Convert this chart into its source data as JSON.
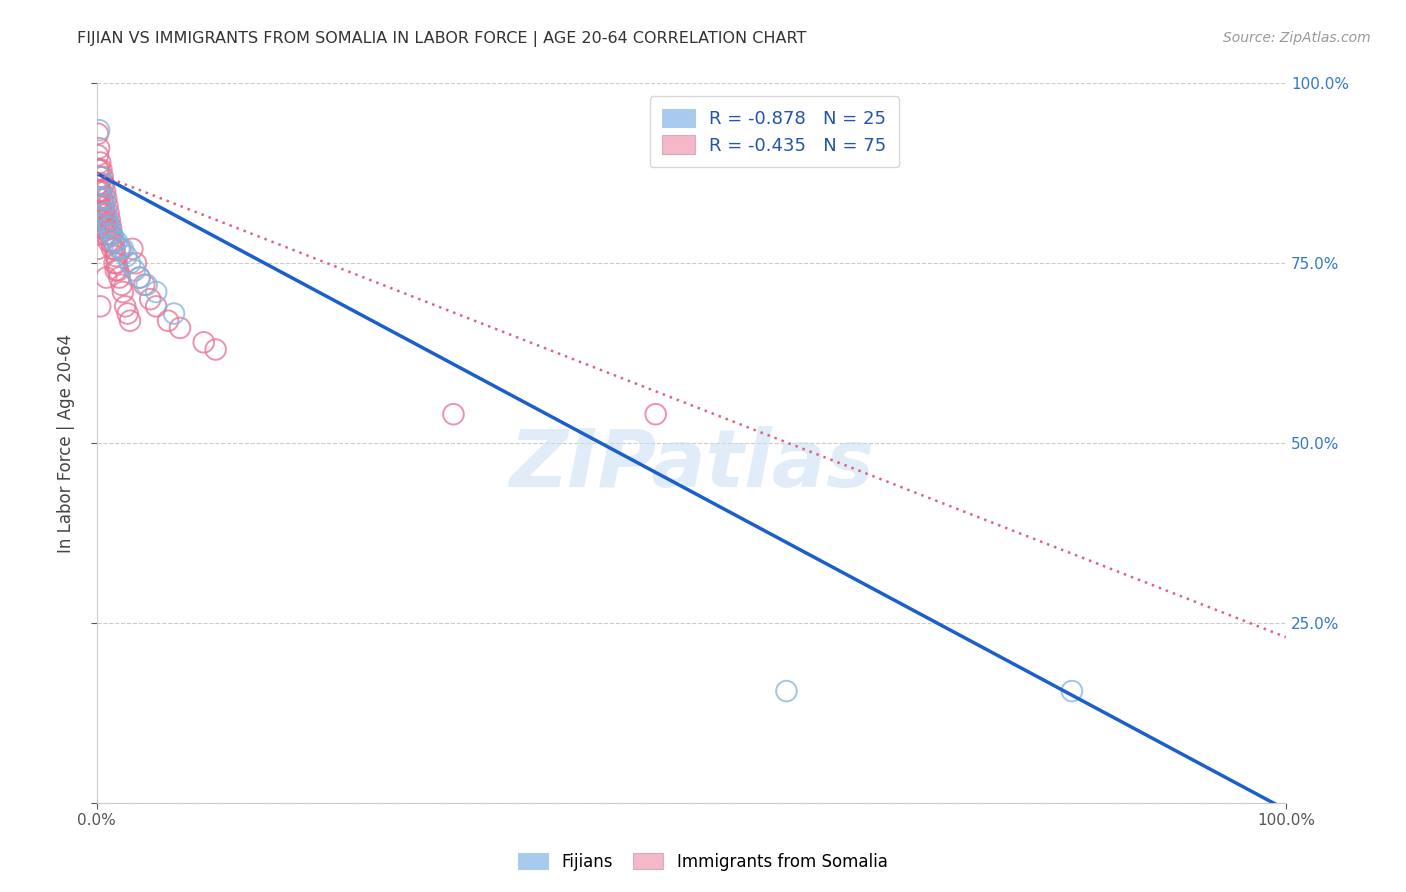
{
  "title": "FIJIAN VS IMMIGRANTS FROM SOMALIA IN LABOR FORCE | AGE 20-64 CORRELATION CHART",
  "source": "Source: ZipAtlas.com",
  "ylabel": "In Labor Force | Age 20-64",
  "xlim": [
    0.0,
    1.0
  ],
  "ylim": [
    0.0,
    1.0
  ],
  "legend_bottom_labels": [
    "Fijians",
    "Immigrants from Somalia"
  ],
  "fijian_color": "#a8caed",
  "fijian_edge_color": "#7eb3e0",
  "somalia_color": "#f4b8c8",
  "somalia_edge_color": "#e87090",
  "fijian_line_color": "#1a5fcc",
  "somalia_line_color": "#e06080",
  "watermark": "ZIPatlas",
  "background_color": "#ffffff",
  "grid_color": "#cccccc",
  "fijian_x": [
    0.002,
    0.003,
    0.004,
    0.005,
    0.006,
    0.007,
    0.008,
    0.009,
    0.01,
    0.011,
    0.012,
    0.013,
    0.015,
    0.017,
    0.019,
    0.022,
    0.025,
    0.028,
    0.032,
    0.036,
    0.042,
    0.05,
    0.065,
    0.58,
    0.82
  ],
  "fijian_y": [
    0.935,
    0.87,
    0.84,
    0.86,
    0.83,
    0.84,
    0.82,
    0.81,
    0.8,
    0.8,
    0.79,
    0.79,
    0.78,
    0.78,
    0.77,
    0.77,
    0.76,
    0.75,
    0.74,
    0.73,
    0.72,
    0.71,
    0.68,
    0.155,
    0.155
  ],
  "somalia_x": [
    0.001,
    0.001,
    0.001,
    0.001,
    0.001,
    0.001,
    0.001,
    0.001,
    0.001,
    0.002,
    0.002,
    0.002,
    0.002,
    0.002,
    0.002,
    0.003,
    0.003,
    0.003,
    0.003,
    0.003,
    0.004,
    0.004,
    0.004,
    0.005,
    0.005,
    0.005,
    0.005,
    0.006,
    0.006,
    0.006,
    0.007,
    0.007,
    0.007,
    0.008,
    0.008,
    0.008,
    0.009,
    0.009,
    0.01,
    0.01,
    0.01,
    0.011,
    0.011,
    0.012,
    0.012,
    0.013,
    0.013,
    0.014,
    0.015,
    0.015,
    0.016,
    0.016,
    0.017,
    0.018,
    0.019,
    0.02,
    0.021,
    0.022,
    0.024,
    0.026,
    0.028,
    0.03,
    0.033,
    0.036,
    0.04,
    0.045,
    0.05,
    0.06,
    0.07,
    0.09,
    0.1,
    0.3,
    0.47,
    0.008,
    0.003
  ],
  "somalia_y": [
    0.93,
    0.9,
    0.88,
    0.86,
    0.85,
    0.83,
    0.81,
    0.79,
    0.77,
    0.91,
    0.88,
    0.86,
    0.84,
    0.82,
    0.8,
    0.89,
    0.87,
    0.85,
    0.83,
    0.81,
    0.88,
    0.85,
    0.82,
    0.87,
    0.84,
    0.82,
    0.8,
    0.86,
    0.83,
    0.81,
    0.85,
    0.82,
    0.8,
    0.84,
    0.81,
    0.79,
    0.83,
    0.8,
    0.82,
    0.8,
    0.78,
    0.81,
    0.79,
    0.8,
    0.78,
    0.79,
    0.77,
    0.78,
    0.77,
    0.75,
    0.76,
    0.74,
    0.75,
    0.74,
    0.73,
    0.77,
    0.72,
    0.71,
    0.69,
    0.68,
    0.67,
    0.77,
    0.75,
    0.73,
    0.72,
    0.7,
    0.69,
    0.67,
    0.66,
    0.64,
    0.63,
    0.54,
    0.54,
    0.73,
    0.69
  ],
  "fij_line_x": [
    0.0,
    1.0
  ],
  "fij_line_y": [
    0.875,
    -0.01
  ],
  "som_line_x": [
    0.0,
    1.0
  ],
  "som_line_y": [
    0.875,
    0.23
  ]
}
